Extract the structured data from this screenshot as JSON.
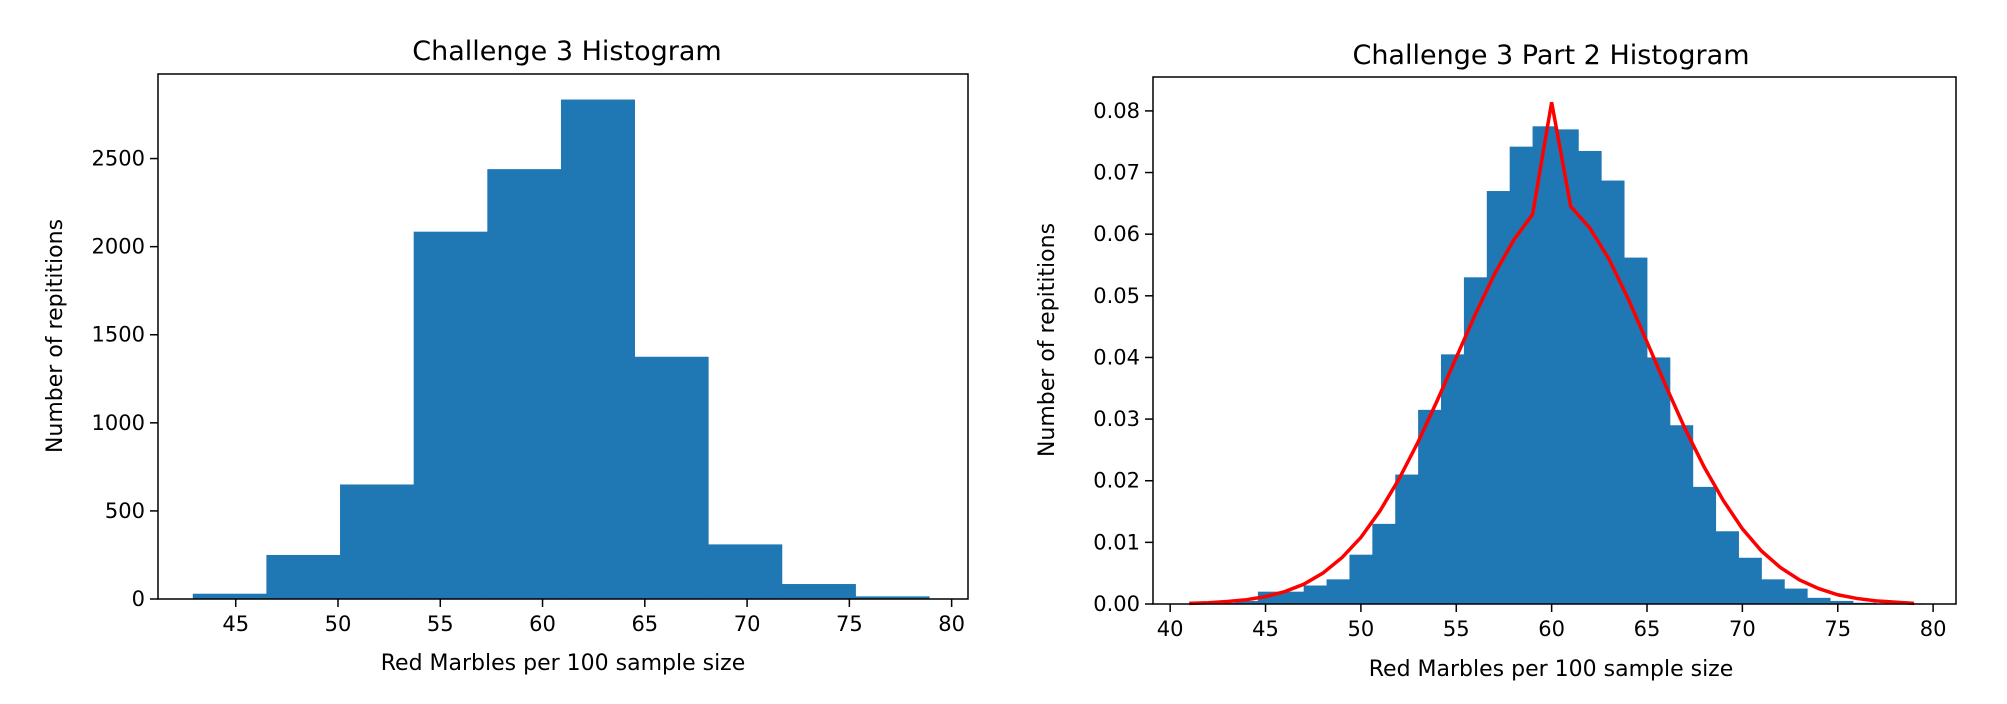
{
  "chart_data": [
    {
      "type": "bar",
      "title": "Challenge 3 Histogram",
      "xlabel": "Red Marbles per 100 sample size",
      "ylabel": "Number of repititions",
      "xlim": [
        41.2,
        80.8
      ],
      "ylim": [
        0,
        2980
      ],
      "xticks": [
        45,
        50,
        55,
        60,
        65,
        70,
        75,
        80
      ],
      "yticks": [
        0,
        500,
        1000,
        1500,
        2000,
        2500
      ],
      "bin_edges": [
        42.9,
        46.5,
        50.1,
        53.7,
        57.3,
        60.9,
        64.5,
        68.1,
        71.7,
        75.3,
        78.9
      ],
      "values": [
        30,
        250,
        650,
        2085,
        2440,
        2835,
        1375,
        310,
        85,
        15
      ],
      "colors": {
        "bars": "#1f77b4",
        "axes": "#000000",
        "background": "#ffffff"
      }
    },
    {
      "type": "bar",
      "title": "Challenge 3 Part 2 Histogram",
      "xlabel": "Red Marbles per 100 sample size",
      "ylabel": "Number of repititions",
      "xlim": [
        39.1,
        81.2
      ],
      "ylim": [
        0,
        0.0855
      ],
      "xticks": [
        40,
        45,
        50,
        55,
        60,
        65,
        70,
        75,
        80
      ],
      "yticks": [
        0.0,
        0.01,
        0.02,
        0.03,
        0.04,
        0.05,
        0.06,
        0.07,
        0.08
      ],
      "ytick_labels": [
        "0.00",
        "0.01",
        "0.02",
        "0.03",
        "0.04",
        "0.05",
        "0.06",
        "0.07",
        "0.08"
      ],
      "bin_edges": [
        41.0,
        42.2,
        43.4,
        44.6,
        45.8,
        47.0,
        48.2,
        49.4,
        50.6,
        51.8,
        53.0,
        54.2,
        55.4,
        56.6,
        57.8,
        59.0,
        60.2,
        61.4,
        62.6,
        63.8,
        65.0,
        66.2,
        67.4,
        68.6,
        69.8,
        71.0,
        72.2,
        73.4,
        74.6,
        75.8,
        77.0,
        78.2,
        79.4
      ],
      "values": [
        0.0001,
        0.0002,
        0.0005,
        0.002,
        0.002,
        0.003,
        0.004,
        0.008,
        0.013,
        0.021,
        0.0315,
        0.0405,
        0.053,
        0.067,
        0.0742,
        0.0775,
        0.077,
        0.0735,
        0.0687,
        0.0562,
        0.04,
        0.029,
        0.019,
        0.0118,
        0.0075,
        0.004,
        0.0025,
        0.001,
        0.0005,
        0.0002,
        0.0001,
        0.0001
      ],
      "curve": {
        "color": "#ff0000",
        "x": [
          41.0,
          42.0,
          43.0,
          44.0,
          45.0,
          46.0,
          47.0,
          48.0,
          49.0,
          50.0,
          51.0,
          52.0,
          53.0,
          54.0,
          55.0,
          56.0,
          57.0,
          58.0,
          59.0,
          60.0,
          61.0,
          62.0,
          63.0,
          64.0,
          65.0,
          66.0,
          67.0,
          68.0,
          69.0,
          70.0,
          71.0,
          72.0,
          73.0,
          74.0,
          75.0,
          76.0,
          77.0,
          78.0,
          79.0
        ],
        "y": [
          0.0001,
          0.0002,
          0.0004,
          0.0007,
          0.0012,
          0.002,
          0.0032,
          0.005,
          0.0075,
          0.0108,
          0.0151,
          0.0203,
          0.0263,
          0.033,
          0.04,
          0.047,
          0.0535,
          0.059,
          0.0632,
          0.0814,
          0.0645,
          0.061,
          0.056,
          0.0496,
          0.0425,
          0.0353,
          0.0284,
          0.0222,
          0.0168,
          0.0122,
          0.0086,
          0.0059,
          0.0039,
          0.0025,
          0.0015,
          0.0009,
          0.0005,
          0.0003,
          0.0001
        ]
      },
      "colors": {
        "bars": "#1f77b4",
        "axes": "#000000",
        "background": "#ffffff"
      }
    }
  ]
}
